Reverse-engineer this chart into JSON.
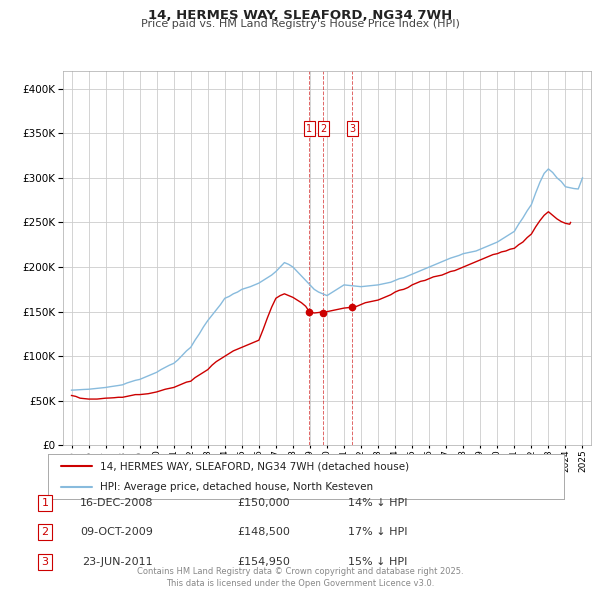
{
  "title": "14, HERMES WAY, SLEAFORD, NG34 7WH",
  "subtitle": "Price paid vs. HM Land Registry's House Price Index (HPI)",
  "legend_line1": "14, HERMES WAY, SLEAFORD, NG34 7WH (detached house)",
  "legend_line2": "HPI: Average price, detached house, North Kesteven",
  "transactions": [
    {
      "num": 1,
      "date": "16-DEC-2008",
      "date_x": 2008.96,
      "price": 150000,
      "label": "14% ↓ HPI"
    },
    {
      "num": 2,
      "date": "09-OCT-2009",
      "date_x": 2009.77,
      "price": 148500,
      "label": "17% ↓ HPI"
    },
    {
      "num": 3,
      "date": "23-JUN-2011",
      "date_x": 2011.47,
      "price": 154950,
      "label": "15% ↓ HPI"
    }
  ],
  "price_color": "#cc0000",
  "hpi_color": "#88bbdd",
  "vline_color": "#cc0000",
  "background_color": "#ffffff",
  "grid_color": "#cccccc",
  "ylim": [
    0,
    420000
  ],
  "xlim_start": 1994.5,
  "xlim_end": 2025.5,
  "footer": "Contains HM Land Registry data © Crown copyright and database right 2025.\nThis data is licensed under the Open Government Licence v3.0.",
  "hpi_x": [
    1995.0,
    1995.25,
    1995.5,
    1995.75,
    1996.0,
    1996.25,
    1996.5,
    1996.75,
    1997.0,
    1997.25,
    1997.5,
    1997.75,
    1998.0,
    1998.25,
    1998.5,
    1998.75,
    1999.0,
    1999.25,
    1999.5,
    1999.75,
    2000.0,
    2000.25,
    2000.5,
    2000.75,
    2001.0,
    2001.25,
    2001.5,
    2001.75,
    2002.0,
    2002.25,
    2002.5,
    2002.75,
    2003.0,
    2003.25,
    2003.5,
    2003.75,
    2004.0,
    2004.25,
    2004.5,
    2004.75,
    2005.0,
    2005.25,
    2005.5,
    2005.75,
    2006.0,
    2006.25,
    2006.5,
    2006.75,
    2007.0,
    2007.25,
    2007.5,
    2007.75,
    2008.0,
    2008.25,
    2008.5,
    2008.75,
    2009.0,
    2009.25,
    2009.5,
    2009.75,
    2010.0,
    2010.25,
    2010.5,
    2010.75,
    2011.0,
    2011.25,
    2011.5,
    2011.75,
    2012.0,
    2012.25,
    2012.5,
    2012.75,
    2013.0,
    2013.25,
    2013.5,
    2013.75,
    2014.0,
    2014.25,
    2014.5,
    2014.75,
    2015.0,
    2015.25,
    2015.5,
    2015.75,
    2016.0,
    2016.25,
    2016.5,
    2016.75,
    2017.0,
    2017.25,
    2017.5,
    2017.75,
    2018.0,
    2018.25,
    2018.5,
    2018.75,
    2019.0,
    2019.25,
    2019.5,
    2019.75,
    2020.0,
    2020.25,
    2020.5,
    2020.75,
    2021.0,
    2021.25,
    2021.5,
    2021.75,
    2022.0,
    2022.25,
    2022.5,
    2022.75,
    2023.0,
    2023.25,
    2023.5,
    2023.75,
    2024.0,
    2024.25,
    2024.5,
    2024.75,
    2025.0
  ],
  "hpi_y": [
    62000,
    62200,
    62500,
    62800,
    63000,
    63500,
    64000,
    64500,
    65000,
    65800,
    66500,
    67200,
    68000,
    70000,
    71500,
    73000,
    74000,
    76000,
    78000,
    80000,
    82000,
    85000,
    87500,
    90000,
    92000,
    96000,
    101000,
    106000,
    110000,
    118000,
    125000,
    133000,
    140000,
    146000,
    152000,
    158000,
    165000,
    167000,
    170000,
    172000,
    175000,
    176500,
    178000,
    180000,
    182000,
    185000,
    188000,
    191000,
    195000,
    200000,
    205000,
    203000,
    200000,
    195000,
    190000,
    185000,
    180000,
    175000,
    172000,
    170000,
    168000,
    171000,
    174000,
    177000,
    180000,
    179500,
    179000,
    178500,
    178000,
    178500,
    179000,
    179500,
    180000,
    181000,
    182000,
    183000,
    185000,
    187000,
    188000,
    190000,
    192000,
    194000,
    196000,
    198000,
    200000,
    202000,
    204000,
    206000,
    208000,
    210000,
    211500,
    213000,
    215000,
    216000,
    217000,
    218000,
    220000,
    222000,
    224000,
    226000,
    228000,
    231000,
    234000,
    237000,
    240000,
    248000,
    255000,
    263000,
    270000,
    283000,
    295000,
    305000,
    310000,
    306000,
    300000,
    296000,
    290000,
    289000,
    288000,
    287500,
    300000
  ],
  "price_x": [
    1995.0,
    1995.25,
    1995.5,
    1995.75,
    1996.0,
    1996.25,
    1996.5,
    1996.75,
    1997.0,
    1997.25,
    1997.5,
    1997.75,
    1998.0,
    1998.25,
    1998.5,
    1998.75,
    1999.0,
    1999.25,
    1999.5,
    1999.75,
    2000.0,
    2000.25,
    2000.5,
    2000.75,
    2001.0,
    2001.25,
    2001.5,
    2001.75,
    2002.0,
    2002.25,
    2002.5,
    2002.75,
    2003.0,
    2003.25,
    2003.5,
    2003.75,
    2004.0,
    2004.25,
    2004.5,
    2004.75,
    2005.0,
    2005.25,
    2005.5,
    2005.75,
    2006.0,
    2006.25,
    2006.5,
    2006.75,
    2007.0,
    2007.25,
    2007.5,
    2007.75,
    2008.0,
    2008.25,
    2008.5,
    2008.75,
    2008.96,
    2009.25,
    2009.5,
    2009.75,
    2009.77,
    2010.0,
    2010.25,
    2010.5,
    2010.75,
    2011.0,
    2011.25,
    2011.47,
    2011.75,
    2012.0,
    2012.25,
    2012.5,
    2012.75,
    2013.0,
    2013.25,
    2013.5,
    2013.75,
    2014.0,
    2014.25,
    2014.5,
    2014.75,
    2015.0,
    2015.25,
    2015.5,
    2015.75,
    2016.0,
    2016.25,
    2016.5,
    2016.75,
    2017.0,
    2017.25,
    2017.5,
    2017.75,
    2018.0,
    2018.25,
    2018.5,
    2018.75,
    2019.0,
    2019.25,
    2019.5,
    2019.75,
    2020.0,
    2020.25,
    2020.5,
    2020.75,
    2021.0,
    2021.25,
    2021.5,
    2021.75,
    2022.0,
    2022.25,
    2022.5,
    2022.75,
    2023.0,
    2023.25,
    2023.5,
    2023.75,
    2024.0,
    2024.25,
    2024.3
  ],
  "price_y": [
    56000,
    55000,
    53000,
    52500,
    52000,
    52000,
    52000,
    52500,
    53000,
    53200,
    53500,
    54000,
    54000,
    55000,
    56000,
    57000,
    57000,
    57500,
    58000,
    59000,
    60000,
    61500,
    63000,
    64000,
    65000,
    67000,
    69000,
    71000,
    72000,
    76000,
    79000,
    82000,
    85000,
    90000,
    94000,
    97000,
    100000,
    103000,
    106000,
    108000,
    110000,
    112000,
    114000,
    116000,
    118000,
    130000,
    143000,
    155000,
    165000,
    168000,
    170000,
    168000,
    166000,
    163000,
    160000,
    156000,
    150000,
    148500,
    149000,
    150000,
    148500,
    150000,
    151000,
    152000,
    153000,
    154000,
    154500,
    154950,
    156000,
    158000,
    160000,
    161000,
    162000,
    163000,
    165000,
    167000,
    169000,
    172000,
    174000,
    175000,
    177000,
    180000,
    182000,
    184000,
    185000,
    187000,
    189000,
    190000,
    191000,
    193000,
    195000,
    196000,
    198000,
    200000,
    202000,
    204000,
    206000,
    208000,
    210000,
    212000,
    214000,
    215000,
    217000,
    218000,
    220000,
    221000,
    225000,
    228000,
    233000,
    237000,
    245000,
    252000,
    258000,
    262000,
    258000,
    254000,
    251000,
    249000,
    248000,
    250000
  ]
}
